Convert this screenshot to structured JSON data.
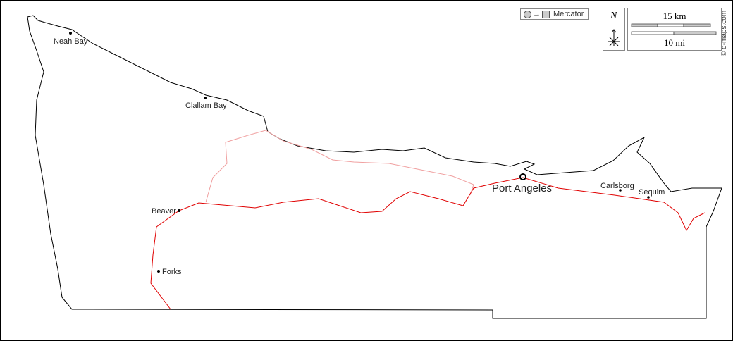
{
  "projection": {
    "label": "Mercator",
    "icon": "circle-to-square-icon"
  },
  "north_arrow": {
    "label": "N"
  },
  "scale_bar": {
    "km_label": "15 km",
    "mi_label": "10 mi"
  },
  "credit": "© d-maps.com",
  "cities": [
    {
      "name": "Neah Bay",
      "size": "small"
    },
    {
      "name": "Clallam Bay",
      "size": "small"
    },
    {
      "name": "Beaver",
      "size": "small"
    },
    {
      "name": "Forks",
      "size": "small"
    },
    {
      "name": "Port Angeles",
      "size": "large"
    },
    {
      "name": "Carlsborg",
      "size": "small"
    },
    {
      "name": "Sequim",
      "size": "small"
    }
  ],
  "colors": {
    "coast": "#000000",
    "main_road": "#e00000",
    "secondary_road": "#f0a0a0"
  }
}
